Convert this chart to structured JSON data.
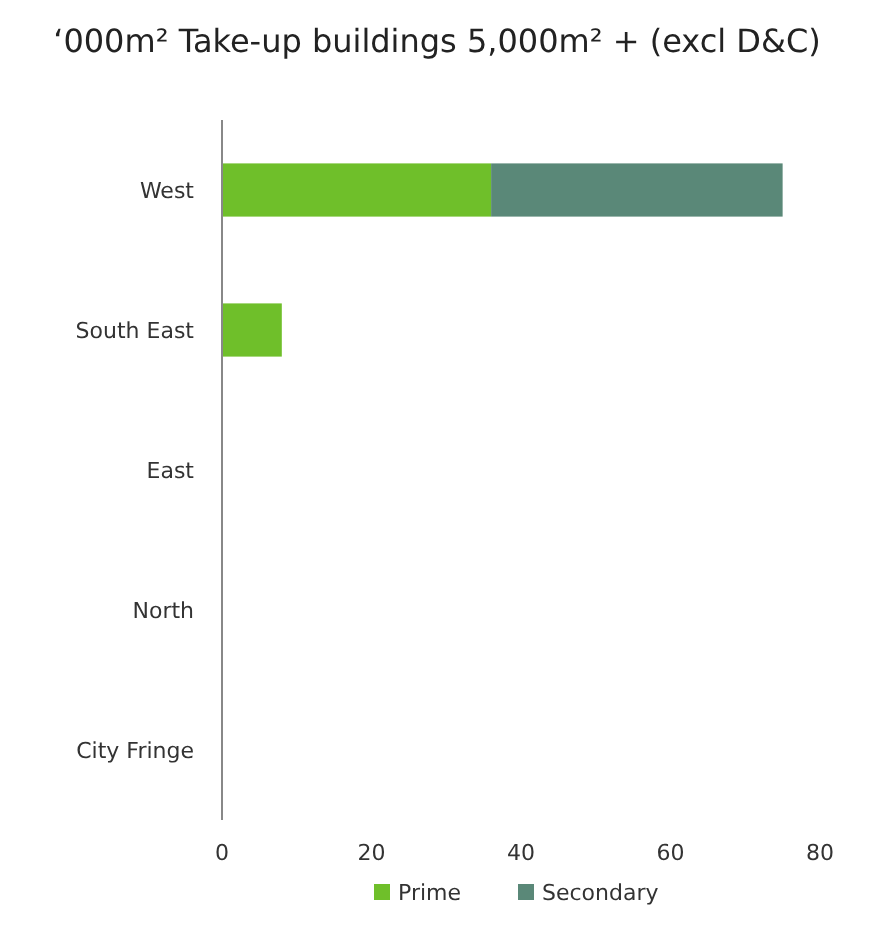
{
  "chart_data": {
    "type": "bar",
    "orientation": "horizontal",
    "stacked": true,
    "title": "‘000m² Take-up buildings 5,000m² + (excl D&C)",
    "categories": [
      "West",
      "South East",
      "East",
      "North",
      "City Fringe"
    ],
    "series": [
      {
        "name": "Prime",
        "color": "#6fbf2a",
        "values": [
          36,
          8,
          0,
          0,
          0
        ]
      },
      {
        "name": "Secondary",
        "color": "#5a8878",
        "values": [
          39,
          0,
          0,
          0,
          0
        ]
      }
    ],
    "xlim": [
      0,
      80
    ],
    "xticks": [
      0,
      20,
      40,
      60,
      80
    ],
    "grid": false,
    "legend": "bottom"
  }
}
